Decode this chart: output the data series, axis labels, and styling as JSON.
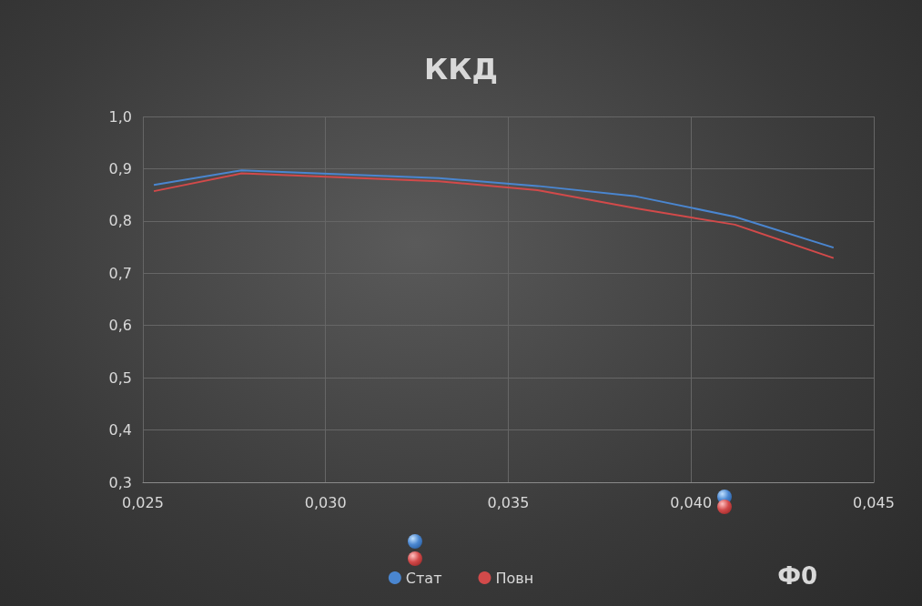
{
  "chart_data": {
    "type": "line",
    "title": "ККД",
    "xlabel": "Ф0",
    "x": [
      0.0253,
      0.0277,
      0.0331,
      0.0358,
      0.0385,
      0.0412,
      0.0439
    ],
    "series": [
      {
        "name": "Стат",
        "color": "#4a86d0",
        "values": [
          0.869,
          0.897,
          0.882,
          0.867,
          0.847,
          0.808,
          0.749
        ]
      },
      {
        "name": "Повн",
        "color": "#d24a4a",
        "values": [
          0.857,
          0.891,
          0.876,
          0.859,
          0.824,
          0.793,
          0.729
        ]
      }
    ],
    "xlim": [
      0.025,
      0.045
    ],
    "xticks": [
      {
        "value": 0.025,
        "label": "0,025"
      },
      {
        "value": 0.03,
        "label": "0,030"
      },
      {
        "value": 0.035,
        "label": "0,035"
      },
      {
        "value": 0.04,
        "label": "0,040"
      },
      {
        "value": 0.045,
        "label": "0,045"
      }
    ],
    "ylim": [
      0.3,
      1.0
    ],
    "yticks": [
      {
        "value": 0.3,
        "label": "0,3"
      },
      {
        "value": 0.4,
        "label": "0,4"
      },
      {
        "value": 0.5,
        "label": "0,5"
      },
      {
        "value": 0.6,
        "label": "0,6"
      },
      {
        "value": 0.7,
        "label": "0,7"
      },
      {
        "value": 0.8,
        "label": "0,8"
      },
      {
        "value": 0.9,
        "label": "0,9"
      },
      {
        "value": 1.0,
        "label": "1,0"
      }
    ],
    "grid": true,
    "legend": "bottom",
    "marker": "none",
    "line_style": "solid"
  }
}
